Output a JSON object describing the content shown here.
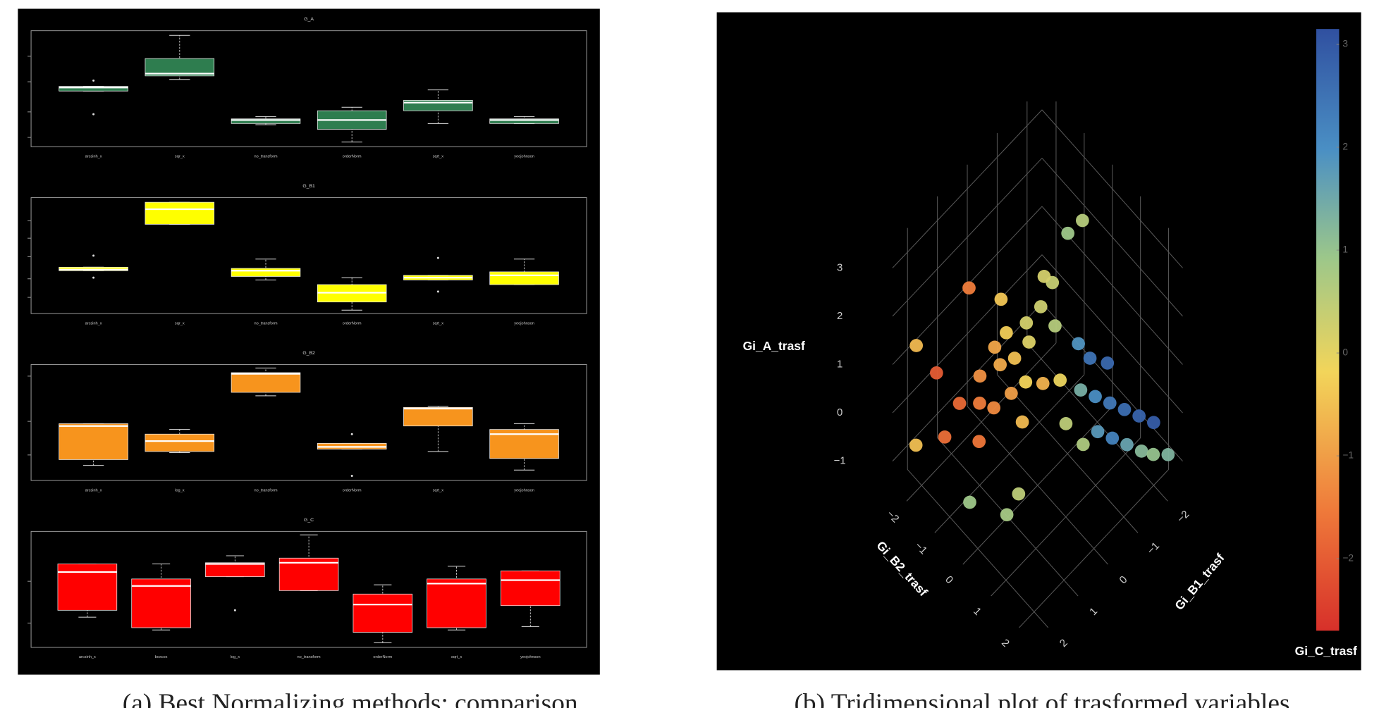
{
  "chart_data": [
    {
      "type": "box",
      "title": "G_A",
      "color": "#2e7d4f",
      "categories": [
        "arcsinh_x",
        "sqr_x",
        "no_transform",
        "orderNorm",
        "sqrt_x",
        "yeojohnson"
      ],
      "ylim": [
        0,
        10
      ],
      "yticks": [
        0.8,
        3.0,
        5.6,
        7.8
      ],
      "min": [
        4.8,
        5.8,
        1.9,
        0.4,
        2.0,
        2.0
      ],
      "q1": [
        4.8,
        6.1,
        2.0,
        1.5,
        3.1,
        2.0
      ],
      "median": [
        5.1,
        6.3,
        2.3,
        2.3,
        3.8,
        2.3
      ],
      "q3": [
        5.2,
        7.6,
        2.4,
        3.1,
        4.0,
        2.4
      ],
      "max": [
        5.2,
        9.6,
        2.6,
        3.4,
        4.9,
        2.6
      ],
      "outliers": [
        [
          5.7,
          2.8
        ],
        [],
        [],
        [],
        [],
        []
      ]
    },
    {
      "type": "box",
      "title": "G_B1",
      "color": "#ffff00",
      "categories": [
        "arcsinh_x",
        "sqr_x",
        "no_transform",
        "orderNorm",
        "sqrt_x",
        "yeojohnson"
      ],
      "ylim": [
        0,
        10
      ],
      "yticks": [
        1.4,
        3.0,
        4.9,
        6.5,
        8.0
      ],
      "min": [
        3.7,
        7.7,
        2.9,
        0.3,
        2.9,
        2.5
      ],
      "q1": [
        3.7,
        7.7,
        3.2,
        1.0,
        2.9,
        2.5
      ],
      "median": [
        3.8,
        9.0,
        3.7,
        1.8,
        3.1,
        3.3
      ],
      "q3": [
        4.0,
        9.6,
        3.9,
        2.5,
        3.3,
        3.6
      ],
      "max": [
        4.0,
        9.6,
        4.7,
        3.1,
        3.3,
        4.7
      ],
      "outliers": [
        [
          5.0,
          3.1
        ],
        [],
        [],
        [],
        [
          4.8,
          1.9
        ],
        []
      ]
    },
    {
      "type": "box",
      "title": "G_B2",
      "color": "#f7941d",
      "categories": [
        "arcsinh_x",
        "log_x",
        "no_transform",
        "orderNorm",
        "sqrt_x",
        "yeojohnson"
      ],
      "ylim": [
        0,
        10
      ],
      "yticks": [
        2.2,
        5.1,
        9.0
      ],
      "min": [
        1.3,
        2.4,
        7.3,
        2.7,
        2.5,
        0.9
      ],
      "q1": [
        1.8,
        2.5,
        7.6,
        2.7,
        4.7,
        1.9
      ],
      "median": [
        4.7,
        3.4,
        9.2,
        2.9,
        6.2,
        4.0
      ],
      "q3": [
        4.9,
        4.0,
        9.3,
        3.2,
        6.3,
        4.4
      ],
      "max": [
        4.9,
        4.4,
        9.7,
        3.2,
        6.4,
        4.9
      ],
      "outliers": [
        [],
        [],
        [],
        [
          4.0,
          0.4
        ],
        [],
        []
      ]
    },
    {
      "type": "box",
      "title": "G_C",
      "color": "#ff0000",
      "categories": [
        "arcsinh_x",
        "boxcox",
        "log_x",
        "no_transform",
        "orderNorm",
        "sqrt_x",
        "yeojohnson"
      ],
      "ylim": [
        0,
        10
      ],
      "yticks": [
        2.1,
        5.7
      ],
      "min": [
        2.6,
        1.5,
        6.1,
        4.9,
        0.4,
        1.5,
        1.8
      ],
      "q1": [
        3.2,
        1.7,
        6.1,
        4.9,
        1.3,
        1.7,
        3.6
      ],
      "median": [
        6.5,
        5.3,
        7.2,
        7.3,
        3.7,
        5.5,
        5.8
      ],
      "q3": [
        7.2,
        5.9,
        7.3,
        7.7,
        4.6,
        5.9,
        6.6
      ],
      "max": [
        7.2,
        7.2,
        7.9,
        9.7,
        5.4,
        7.0,
        6.6
      ],
      "outliers": [
        [],
        [],
        [
          3.2
        ],
        [],
        [],
        [],
        []
      ]
    },
    {
      "type": "scatter3d",
      "x_label": "Gi_B2_trasf",
      "y_label": "Gi_B1_trasf",
      "z_label": "Gi_A_trasf",
      "color_label": "Gi_C_trasf",
      "xlim": [
        -2.5,
        2.5
      ],
      "ylim": [
        -2.5,
        2.5
      ],
      "zlim": [
        -1.5,
        3.5
      ],
      "clim": [
        -2.7,
        3.15
      ],
      "xticks": [
        {
          "value": -2,
          "label": "−2"
        },
        {
          "value": -1,
          "label": "−1"
        },
        0,
        1,
        2
      ],
      "yticks": [
        {
          "value": -2,
          "label": "−2"
        },
        {
          "value": -1,
          "label": "−1"
        },
        0,
        1,
        2
      ],
      "zticks": [
        {
          "value": -1,
          "label": "−1"
        },
        0,
        1,
        2,
        3
      ],
      "cticks": [
        {
          "value": -2,
          "label": "−2"
        },
        {
          "value": -1,
          "label": "−1"
        },
        0,
        1,
        2,
        3
      ],
      "x": [
        -1.2,
        -1.0,
        -0.8,
        -0.5,
        -0.3,
        -0.9,
        -1.5,
        -0.6,
        -0.2,
        0.0,
        -1.1,
        -0.4,
        -0.7,
        0.2,
        -1.3,
        -0.1,
        0.1,
        -0.3,
        0.3,
        -1.8,
        -2.0,
        -1.6,
        0.5,
        0.6,
        -0.5,
        0.8,
        0.4,
        1.0,
        1.2,
        1.4,
        1.6,
        1.8,
        2.0,
        1.5,
        1.7,
        1.9,
        2.1,
        2.2,
        0.8,
        1.1,
        0.6,
        2.3,
        1.3,
        0.9,
        -2.2,
        -2.4,
        0.0,
        -0.2
      ],
      "y": [
        0.8,
        1.0,
        0.5,
        0.3,
        0.6,
        0.2,
        1.2,
        0.9,
        0.1,
        0.4,
        0.4,
        0.0,
        1.3,
        0.7,
        0.0,
        -0.2,
        -0.4,
        -0.5,
        -0.3,
        0.6,
        1.5,
        1.6,
        1.5,
        1.2,
        1.8,
        0.0,
        0.2,
        -0.5,
        -0.8,
        -1.1,
        -1.4,
        -1.7,
        -2.0,
        -0.6,
        -0.9,
        -1.2,
        -1.5,
        -1.8,
        -1.0,
        -1.3,
        -0.8,
        -2.2,
        -0.3,
        -0.1,
        2.0,
        1.8,
        -1.5,
        -1.2
      ],
      "z": [
        0.5,
        0.2,
        0.8,
        1.0,
        0.6,
        1.2,
        0.0,
        0.3,
        1.4,
        0.9,
        0.9,
        1.6,
        -0.2,
        0.4,
        1.5,
        2.0,
        2.5,
        2.3,
        1.8,
        1.8,
        0.5,
        -0.5,
        -0.8,
        -0.5,
        -1.0,
        1.2,
        1.0,
        0.8,
        0.6,
        0.4,
        0.2,
        0.0,
        -0.2,
        0.2,
        0.0,
        -0.2,
        -0.4,
        -0.6,
        1.0,
        0.9,
        1.3,
        -0.8,
        0.0,
        0.3,
        -0.8,
        1.0,
        3.0,
        2.8
      ],
      "c": [
        -1.2,
        -1.5,
        -0.8,
        -0.5,
        -1.0,
        -0.3,
        -1.8,
        -1.3,
        0.1,
        -0.2,
        -0.9,
        0.2,
        -1.6,
        -0.6,
        -0.4,
        0.3,
        0.4,
        0.2,
        0.6,
        -1.5,
        -2.0,
        -1.7,
        0.8,
        0.5,
        0.9,
        -0.1,
        -0.7,
        1.4,
        2.0,
        2.4,
        2.6,
        2.8,
        2.9,
        1.8,
        2.2,
        1.6,
        1.2,
        1.0,
        2.5,
        2.7,
        1.9,
        1.3,
        0.7,
        0.5,
        -0.5,
        -0.6,
        0.6,
        0.9
      ]
    }
  ],
  "captions": [
    "(a) Best Normalizing methods: comparison",
    "(b) Tridimensional plot of trasformed variables"
  ]
}
